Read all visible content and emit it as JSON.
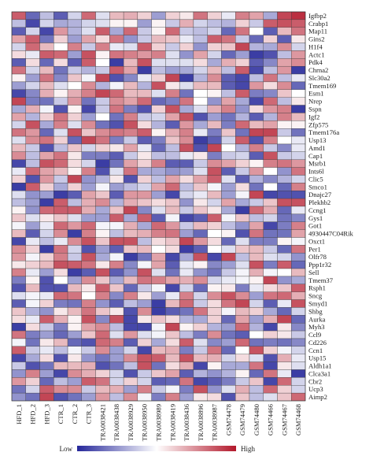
{
  "chart_data": {
    "type": "heatmap",
    "title": "",
    "xlabel": "",
    "ylabel": "",
    "columns": [
      "HFD_1",
      "HFD_2",
      "HFD_3",
      "CTR_1",
      "CTR_2",
      "CTR_3",
      "TRA0038421",
      "TRA0038438",
      "TRA0038929",
      "TRA0038950",
      "TRA0038989",
      "TRA0038419",
      "TRA0038436",
      "TRA0038896",
      "TRA0038987",
      "GSM74478",
      "GSM74479",
      "GSM74480",
      "GSM74466",
      "GSM74467",
      "GSM74468"
    ],
    "rows": [
      "Igfbp2",
      "Crabp1",
      "Map11",
      "Gins2",
      "H1f4",
      "Actc1",
      "Pdk4",
      "Chrna2",
      "Slc30a2",
      "Tmem169",
      "Esm1",
      "Nrep",
      "Sspn",
      "Igf2",
      "Zfp575",
      "Tmem176a",
      "Usp13",
      "Amd1",
      "Cap1",
      "Msrb1",
      "Ints6l",
      "Clic5",
      "Smco1",
      "Dnajc27",
      "Plekhb2",
      "Ccng1",
      "Gys1",
      "Got1",
      "4930447C04Rik",
      "Oxct1",
      "Per1",
      "Olfr78",
      "Ppp1r32",
      "Sell",
      "Tmem37",
      "Rsph1",
      "Sncg",
      "Smyd1",
      "Shbg",
      "Aurka",
      "Myh3",
      "Ccl9",
      "Cd226",
      "Ccn1",
      "Usp15",
      "Aldh1a1",
      "Clca3a1",
      "Cbr2",
      "Ucp3",
      "Aimp2"
    ],
    "values_range": [
      -2,
      2
    ],
    "values": [
      [
        1.4,
        -1.4,
        -0.6,
        -1.5,
        -0.4,
        1.3,
        -0.3,
        0.6,
        0.7,
        0.4,
        -0.9,
        0.4,
        0.2,
        1.2,
        0.4,
        -0.2,
        1.1,
        0.8,
        -0.8,
        1.6,
        1.8
      ],
      [
        -0.6,
        -1.7,
        -0.4,
        -0.8,
        -0.7,
        -0.4,
        -0.3,
        0.1,
        0.1,
        -0.9,
        0.1,
        -0.5,
        0.7,
        -0.4,
        -0.6,
        -0.7,
        0.4,
        -0.5,
        1.4,
        1.5,
        1.4
      ],
      [
        -1.5,
        -0.4,
        -1.7,
        0.9,
        -0.7,
        -0.3,
        1.4,
        -0.8,
        1.3,
        -0.5,
        0.1,
        1.3,
        -0.5,
        -0.6,
        -0.4,
        -1.4,
        1.2,
        0.0,
        -1.5,
        0.6,
        1.2
      ],
      [
        0.8,
        1.4,
        -1.3,
        0.4,
        -0.9,
        0.8,
        0.3,
        1.2,
        -1.0,
        -0.5,
        0.6,
        0.5,
        -0.2,
        -0.6,
        1.4,
        1.2,
        -0.5,
        -1.4,
        0.4,
        -1.5,
        0.2
      ],
      [
        -0.4,
        1.3,
        0.6,
        0.0,
        1.1,
        -0.5,
        1.1,
        -0.2,
        -0.3,
        1.4,
        0.4,
        -0.5,
        0.4,
        -1.0,
        0.4,
        0.5,
        1.6,
        -0.7,
        -0.8,
        1.0,
        -0.4
      ],
      [
        0.3,
        -0.2,
        1.4,
        1.3,
        -0.9,
        1.5,
        0.1,
        1.2,
        1.1,
        0.9,
        1.1,
        -0.3,
        -1.0,
        0.8,
        -0.4,
        -1.4,
        -0.9,
        -1.8,
        -1.6,
        -0.6,
        0.9
      ],
      [
        -1.5,
        0.3,
        -1.4,
        0.3,
        -1.5,
        1.4,
        0.0,
        -1.8,
        0.6,
        1.5,
        -0.3,
        -0.3,
        -0.3,
        0.3,
        -0.8,
        0.7,
        0.4,
        -1.5,
        -1.1,
        0.8,
        1.0
      ],
      [
        1.2,
        -0.4,
        0.6,
        -1.3,
        -0.5,
        -0.7,
        -0.5,
        1.4,
        0.8,
        -1.8,
        -0.6,
        -0.9,
        -0.8,
        -0.4,
        0.6,
        -0.6,
        1.4,
        -1.7,
        -0.6,
        0.9,
        -1.8
      ],
      [
        0.1,
        -0.9,
        1.2,
        -1.1,
        0.5,
        -0.1,
        1.6,
        -1.6,
        -1.1,
        -0.2,
        0.4,
        1.6,
        -1.8,
        -0.7,
        1.0,
        -1.5,
        -1.7,
        -0.6,
        1.2,
        -0.6,
        -0.2
      ],
      [
        -0.9,
        -0.4,
        0.6,
        -0.3,
        0.0,
        1.0,
        -0.7,
        -0.1,
        0.6,
        -0.7,
        1.5,
        0.2,
        -0.3,
        0.6,
        0.6,
        -1.5,
        -1.7,
        0.9,
        0.3,
        1.0,
        -1.4
      ],
      [
        -1.7,
        -1.1,
        0.7,
        0.1,
        0.7,
        1.1,
        1.6,
        1.3,
        0.6,
        0.6,
        -0.3,
        1.1,
        -1.3,
        0.0,
        0.1,
        -0.6,
        1.4,
        -1.2,
        -1.1,
        0.5,
        0.0
      ],
      [
        1.6,
        -1.2,
        -1.3,
        -0.5,
        0.9,
        -1.3,
        -0.5,
        1.0,
        0.8,
        1.3,
        -1.4,
        -1.2,
        1.2,
        0.0,
        -1.0,
        0.8,
        -0.8,
        -1.7,
        1.3,
        -0.6,
        0.2
      ],
      [
        -0.8,
        0.7,
        -0.1,
        -1.6,
        0.1,
        -1.7,
        -0.5,
        1.2,
        -1.2,
        -1.6,
        0.4,
        1.5,
        -0.8,
        -0.3,
        0.7,
        1.1,
        -1.0,
        0.3,
        0.9,
        1.1,
        -1.8
      ],
      [
        0.8,
        -0.7,
        0.4,
        1.2,
        0.4,
        -0.9,
        0.0,
        -1.3,
        1.1,
        -0.5,
        -0.4,
        0.8,
        1.5,
        -1.6,
        -0.9,
        -1.3,
        -0.7,
        -1.5,
        -0.7,
        1.1,
        0.6
      ],
      [
        -0.4,
        1.5,
        -0.8,
        1.1,
        -0.3,
        1.0,
        -1.3,
        -1.6,
        1.5,
        0.3,
        -0.7,
        -1.5,
        0.9,
        -0.8,
        0.6,
        -1.2,
        1.3,
        0.6,
        0.8,
        0.1,
        0.1
      ],
      [
        1.2,
        0.9,
        -1.4,
        -0.3,
        1.5,
        0.5,
        1.0,
        1.2,
        1.1,
        1.4,
        0.1,
        0.7,
        1.1,
        -0.2,
        -1.2,
        0.5,
        -1.3,
        1.6,
        1.6,
        -0.5,
        -1.3
      ],
      [
        -0.3,
        1.0,
        1.2,
        0.4,
        -1.4,
        1.6,
        1.2,
        -1.2,
        -0.5,
        -1.5,
        -1.2,
        0.5,
        1.0,
        -1.8,
        -1.5,
        -0.4,
        1.4,
        -1.6,
        1.1,
        0.0,
        -0.2
      ],
      [
        0.6,
        -0.5,
        -1.6,
        -0.6,
        0.5,
        -0.4,
        0.4,
        0.2,
        0.8,
        -0.2,
        -1.4,
        -0.6,
        1.5,
        -1.6,
        1.6,
        0.0,
        -0.7,
        1.1,
        -0.5,
        -1.1,
        -0.2
      ],
      [
        1.0,
        -0.6,
        0.8,
        1.2,
        0.2,
        -1.2,
        -1.2,
        -1.5,
        -0.5,
        0.2,
        -0.6,
        -0.6,
        -0.2,
        0.2,
        -1.2,
        -0.5,
        -0.4,
        -1.5,
        1.5,
        -0.5,
        -0.4
      ],
      [
        -1.7,
        -0.6,
        1.5,
        1.3,
        0.3,
        -0.4,
        -1.8,
        -1.3,
        0.8,
        0.4,
        1.1,
        -1.5,
        -1.5,
        -0.5,
        1.0,
        0.8,
        0.4,
        0.1,
        1.1,
        1.2,
        0.9
      ],
      [
        -0.2,
        1.3,
        0.8,
        0.6,
        0.1,
        1.1,
        -1.6,
        -0.3,
        1.2,
        -0.8,
        -0.8,
        -1.0,
        -0.9,
        -0.3,
        1.5,
        -1.5,
        -0.5,
        0.9,
        0.0,
        -1.0,
        1.2
      ],
      [
        0.4,
        -1.6,
        0.9,
        -0.5,
        1.6,
        -1.0,
        -0.7,
        0.2,
        -1.6,
        0.4,
        -0.6,
        0.8,
        0.3,
        0.8,
        1.4,
        -0.3,
        -1.5,
        -0.7,
        -1.1,
        -0.7,
        -0.4
      ],
      [
        -1.8,
        1.4,
        0.4,
        -0.8,
        0.4,
        -0.9,
        -0.1,
        -0.9,
        -0.6,
        -0.4,
        0.8,
        1.3,
        -0.6,
        0.5,
        -0.1,
        -0.9,
        0.3,
        -1.3,
        0.0,
        -1.4,
        1.1
      ],
      [
        -0.3,
        -1.0,
        -0.9,
        -1.8,
        -1.5,
        0.8,
        0.5,
        -1.5,
        0.9,
        0.9,
        -0.9,
        -1.7,
        -0.4,
        -0.2,
        0.6,
        -0.9,
        -0.1,
        1.6,
        -1.7,
        -1.6,
        -1.6
      ],
      [
        -0.6,
        -0.9,
        -1.8,
        1.4,
        -0.6,
        0.7,
        1.0,
        -0.7,
        0.7,
        0.5,
        0.3,
        0.5,
        -1.0,
        0.2,
        -0.4,
        0.8,
        -0.8,
        -0.5,
        0.5,
        1.5,
        1.5
      ],
      [
        0.1,
        -1.0,
        1.3,
        1.4,
        1.4,
        0.7,
        -0.8,
        0.5,
        1.6,
        -1.1,
        -0.3,
        0.6,
        -0.5,
        0.5,
        0.2,
        -0.8,
        -1.8,
        1.3,
        0.7,
        -1.4,
        -0.2
      ],
      [
        0.5,
        -0.3,
        0.2,
        0.5,
        -0.3,
        -0.9,
        -0.9,
        1.4,
        -0.8,
        1.4,
        -1.5,
        -0.1,
        -1.7,
        -1.5,
        1.4,
        -0.1,
        0.5,
        -0.6,
        -0.4,
        -1.3,
        -1.1
      ],
      [
        -0.1,
        -0.9,
        -0.2,
        1.3,
        0.9,
        1.3,
        -0.1,
        -0.1,
        0.7,
        -0.8,
        1.3,
        0.9,
        -0.5,
        0.6,
        0.4,
        -0.6,
        -1.0,
        0.8,
        -1.7,
        -1.2,
        1.1
      ],
      [
        0.6,
        -1.5,
        -0.4,
        1.0,
        -1.8,
        1.1,
        0.1,
        -0.6,
        0.6,
        0.7,
        1.1,
        1.2,
        -0.9,
        -1.4,
        0.0,
        0.1,
        -1.6,
        1.2,
        -1.3,
        -1.3,
        0.8
      ],
      [
        -1.7,
        -0.2,
        -0.6,
        -0.2,
        1.0,
        1.5,
        0.5,
        1.5,
        1.5,
        -0.6,
        0.3,
        0.5,
        1.6,
        0.9,
        0.3,
        -1.4,
        -0.3,
        -1.2,
        -1.2,
        0.1,
        -0.1
      ],
      [
        1.0,
        0.4,
        -1.8,
        1.2,
        -0.4,
        -1.6,
        -0.9,
        -1.5,
        0.5,
        0.6,
        0.0,
        0.3,
        -1.8,
        -1.5,
        0.0,
        -0.3,
        0.5,
        0.6,
        -0.5,
        -1.4,
        1.2
      ],
      [
        0.9,
        -0.1,
        0.4,
        1.1,
        -0.5,
        1.5,
        -0.8,
        -0.1,
        -1.8,
        -1.3,
        0.8,
        -1.7,
        -0.8,
        1.5,
        -1.7,
        1.6,
        -0.6,
        0.6,
        -0.3,
        -0.4,
        -1.0
      ],
      [
        0.2,
        0.4,
        0.6,
        1.5,
        1.4,
        1.2,
        0.2,
        1.1,
        -1.1,
        -0.1,
        0.8,
        -1.5,
        -0.2,
        0.1,
        -1.1,
        -0.9,
        -0.3,
        1.5,
        -1.2,
        1.4,
        -1.4
      ],
      [
        1.1,
        -0.2,
        -0.9,
        0.3,
        -1.8,
        -1.5,
        1.5,
        -1.5,
        -1.0,
        1.5,
        -0.3,
        -1.3,
        -0.2,
        -1.0,
        -1.3,
        -0.5,
        -0.1,
        0.7,
        -0.1,
        0.0,
        0.6
      ],
      [
        -1.2,
        0.1,
        -1.6,
        0.0,
        -0.9,
        1.0,
        0.5,
        -0.8,
        0.6,
        1.2,
        1.1,
        0.8,
        0.7,
        1.0,
        -0.4,
        -0.2,
        -0.1,
        0.1,
        1.6,
        -1.0,
        -0.8
      ],
      [
        -1.6,
        0.6,
        -1.6,
        -1.6,
        0.6,
        0.2,
        1.4,
        0.5,
        -1.4,
        -0.5,
        -0.1,
        -1.7,
        -0.4,
        -1.4,
        0.1,
        0.2,
        -1.2,
        -0.2,
        0.3,
        0.5,
        1.4
      ],
      [
        -0.3,
        -0.1,
        -0.2,
        1.3,
        1.2,
        0.0,
        1.1,
        -1.1,
        1.1,
        0.2,
        -0.9,
        -0.2,
        1.1,
        -0.4,
        1.0,
        1.5,
        1.0,
        -0.9,
        1.2,
        1.3,
        0.7
      ],
      [
        -1.5,
        -0.1,
        0.4,
        -1.2,
        -1.3,
        1.1,
        -1.0,
        -1.5,
        -0.6,
        -0.9,
        -1.8,
        0.6,
        1.3,
        -0.5,
        0.3,
        1.2,
        1.6,
        -0.4,
        -1.5,
        -0.2,
        1.5
      ],
      [
        0.5,
        -0.7,
        -1.0,
        0.2,
        0.6,
        1.2,
        0.5,
        0.2,
        -1.6,
        1.0,
        -1.8,
        -1.5,
        -1.3,
        1.2,
        0.4,
        -0.1,
        0.6,
        0.4,
        -0.8,
        -1.4,
        -0.4
      ],
      [
        0.3,
        -0.2,
        1.4,
        0.7,
        0.1,
        1.5,
        -1.1,
        1.5,
        -1.7,
        0.2,
        0.5,
        0.3,
        -0.7,
        -0.8,
        0.4,
        -1.4,
        0.8,
        -0.9,
        0.7,
        1.6,
        -1.4
      ],
      [
        -1.8,
        0.3,
        -0.5,
        -1.2,
        0.1,
        0.8,
        1.0,
        -0.6,
        -1.7,
        -1.7,
        -0.1,
        1.6,
        0.1,
        0.4,
        -0.7,
        -0.9,
        1.3,
        -0.7,
        -1.7,
        0.2,
        -1.1
      ],
      [
        1.2,
        -1.2,
        -0.9,
        -1.4,
        -0.9,
        0.5,
        1.3,
        -0.3,
        0.9,
        -0.3,
        -0.1,
        0.5,
        -0.6,
        -1.2,
        1.0,
        -1.3,
        -1.5,
        0.0,
        0.4,
        0.2,
        -0.5
      ],
      [
        -0.1,
        -1.3,
        0.2,
        0.6,
        -1.4,
        -1.6,
        1.3,
        1.1,
        -1.5,
        0.4,
        -0.8,
        0.3,
        1.4,
        -0.3,
        -1.1,
        -0.9,
        1.3,
        -1.3,
        -1.2,
        -1.3,
        -1.1
      ],
      [
        1.4,
        -0.5,
        -0.2,
        -0.6,
        -0.1,
        -0.5,
        1.0,
        -0.9,
        -0.4,
        -1.7,
        0.6,
        0.7,
        -1.2,
        -0.5,
        1.2,
        -1.4,
        0.0,
        1.5,
        0.4,
        -0.1,
        -0.4
      ],
      [
        -1.7,
        -0.8,
        0.3,
        -1.6,
        0.2,
        -1.0,
        -1.3,
        -0.9,
        1.0,
        1.5,
        1.4,
        0.6,
        1.5,
        0.6,
        0.7,
        -0.4,
        0.3,
        -0.3,
        -1.6,
        0.7,
        -0.2
      ],
      [
        -0.5,
        -1.6,
        -1.3,
        0.6,
        0.6,
        0.7,
        -1.6,
        -1.3,
        -0.6,
        1.5,
        -1.3,
        0.3,
        0.7,
        -1.7,
        0.1,
        -0.8,
        -0.8,
        1.2,
        -1.7,
        0.2,
        -0.3
      ],
      [
        -1.0,
        1.1,
        -0.9,
        -1.7,
        1.0,
        0.7,
        0.4,
        -0.4,
        -1.6,
        -0.5,
        0.5,
        0.8,
        -1.5,
        -0.7,
        -1.0,
        -0.7,
        0.1,
        -1.4,
        1.2,
        -0.2,
        -1.8
      ],
      [
        0.9,
        0.4,
        -1.4,
        -0.6,
        -0.9,
        1.4,
        1.2,
        -0.4,
        0.4,
        -0.4,
        -1.5,
        -1.4,
        1.2,
        -1.7,
        -1.5,
        -1.2,
        -0.5,
        0.5,
        -1.7,
        1.3,
        -0.4
      ],
      [
        -1.3,
        -0.4,
        1.4,
        1.0,
        1.0,
        -0.5,
        0.6,
        0.7,
        -0.9,
        1.1,
        -0.5,
        -0.1,
        -1.2,
        1.5,
        -1.0,
        -0.3,
        0.7,
        -0.6,
        1.3,
        0.4,
        -0.4
      ],
      [
        -1.0,
        -1.3,
        1.6,
        -1.6,
        -1.3,
        -0.9,
        0.9,
        -0.6,
        1.0,
        -0.1,
        -1.2,
        1.1,
        -0.9,
        0.2,
        0.3,
        -1.6,
        0.5,
        -0.6,
        -0.3,
        0.5,
        1.3
      ]
    ],
    "legend": {
      "low_label": "Low",
      "high_label": "High",
      "low_color": "#25279a",
      "mid_color": "#ffffff",
      "high_color": "#b3182b"
    }
  }
}
